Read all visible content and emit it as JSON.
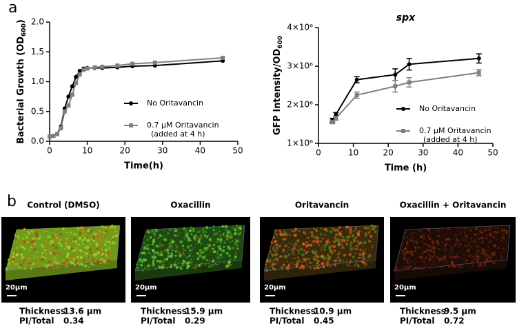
{
  "panel_labels": [
    "a",
    "b"
  ],
  "chart_data": [
    {
      "type": "line",
      "title": null,
      "ylabel": [
        "Bacterial Growth (OD",
        "600",
        ")"
      ],
      "xlabel": "Time(h)",
      "x": [
        0,
        1,
        2,
        3,
        4,
        5,
        6,
        7,
        8,
        9,
        10,
        12,
        14,
        18,
        22,
        28,
        46
      ],
      "series": [
        {
          "name": "No Oritavancin",
          "color": "#000000",
          "marker": "circle",
          "values": [
            0.08,
            0.09,
            0.12,
            0.25,
            0.55,
            0.75,
            0.92,
            1.08,
            1.18,
            1.22,
            1.23,
            1.23,
            1.23,
            1.24,
            1.26,
            1.27,
            1.35
          ]
        },
        {
          "name": "0.7 µM Oritavancin",
          "note": "(added at 4 h)",
          "color": "#7f7f7f",
          "marker": "square",
          "values": [
            0.08,
            0.09,
            0.12,
            0.22,
            0.5,
            0.6,
            0.78,
            0.98,
            1.12,
            1.2,
            1.22,
            1.24,
            1.25,
            1.27,
            1.3,
            1.32,
            1.4
          ]
        }
      ],
      "xlim": [
        0,
        50
      ],
      "xticks": [
        0,
        10,
        20,
        30,
        40,
        50
      ],
      "ylim": [
        0,
        2
      ],
      "yticks": [
        {
          "value": 0,
          "label": "0.0"
        },
        0.5,
        {
          "value": 1,
          "label": "1.0"
        },
        1.5,
        {
          "value": 2,
          "label": "2.0"
        }
      ]
    },
    {
      "type": "line",
      "title": "spx",
      "ylabel": [
        "GFP Intensity/OD",
        "600",
        ""
      ],
      "xlabel": "Time (h)",
      "x": [
        4,
        5,
        11,
        22,
        26,
        46
      ],
      "series": [
        {
          "name": "No Oritavancin",
          "color": "#000000",
          "marker": "circle",
          "values": [
            1600000,
            1750000,
            2650000,
            2780000,
            3050000,
            3200000
          ],
          "errors": [
            50000,
            50000,
            80000,
            150000,
            150000,
            120000
          ]
        },
        {
          "name": "0.7 µM Oritavancin",
          "note": "(added at 4 h)",
          "color": "#7f7f7f",
          "marker": "square",
          "values": [
            1550000,
            1650000,
            2250000,
            2480000,
            2580000,
            2830000
          ],
          "errors": [
            40000,
            50000,
            80000,
            150000,
            120000,
            80000
          ]
        }
      ],
      "xlim": [
        0,
        50
      ],
      "xticks": [
        0,
        10,
        20,
        30,
        40,
        50
      ],
      "ylim": [
        1000000,
        4000000
      ],
      "yticks": [
        {
          "value": 1000000,
          "label": "1×10⁶"
        },
        {
          "value": 2000000,
          "label": "2×10⁶"
        },
        {
          "value": 3000000,
          "label": "3×10⁶"
        },
        {
          "value": 4000000,
          "label": "4×10⁶"
        }
      ]
    }
  ],
  "panels": [
    {
      "title": "Control (DMSO)",
      "scale": "20µm",
      "thickness_label": "Thickness",
      "thickness": "13.6 µm",
      "ratio_label": "PI/Total",
      "ratio": "0.34"
    },
    {
      "title": "Oxacillin",
      "scale": "20µm",
      "thickness_label": "Thickness",
      "thickness": "15.9 µm",
      "ratio_label": "PI/Total",
      "ratio": "0.29"
    },
    {
      "title": "Oritavancin",
      "scale": "20µm",
      "thickness_label": "Thickness",
      "thickness": "10.9 µm",
      "ratio_label": "PI/Total",
      "ratio": "0.45"
    },
    {
      "title": "Oxacillin + Oritavancin",
      "scale": "20µm",
      "thickness_label": "Thickness",
      "thickness": "9.5 µm",
      "ratio_label": "PI/Total",
      "ratio": "0.72"
    }
  ]
}
